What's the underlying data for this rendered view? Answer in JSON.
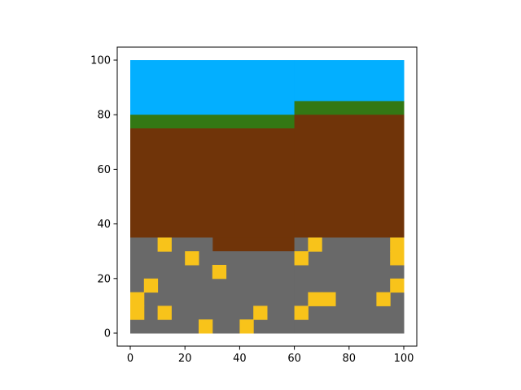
{
  "chart_data": {
    "type": "heatmap",
    "title": "",
    "xlabel": "",
    "ylabel": "",
    "xlim": [
      0,
      100
    ],
    "ylim": [
      0,
      100
    ],
    "grid": false,
    "x_ticks": [
      "0",
      "20",
      "40",
      "60",
      "80",
      "100"
    ],
    "y_ticks": [
      "0",
      "20",
      "40",
      "60",
      "80",
      "100"
    ],
    "x_tick_values": [
      0,
      20,
      40,
      60,
      80,
      100
    ],
    "y_tick_values": [
      0,
      20,
      40,
      60,
      80,
      100
    ],
    "cell_size": 5,
    "colors": {
      "sky": "#03AFFF",
      "grass": "#337814",
      "dirt": "#703409",
      "stone": "#696969",
      "gold": "#F8C31A"
    },
    "regions": [
      {
        "material": "sky",
        "x0": 0,
        "x1": 60,
        "y0": 80,
        "y1": 100
      },
      {
        "material": "sky",
        "x0": 60,
        "x1": 100,
        "y0": 85,
        "y1": 100
      },
      {
        "material": "grass",
        "x0": 0,
        "x1": 60,
        "y0": 75,
        "y1": 80
      },
      {
        "material": "grass",
        "x0": 60,
        "x1": 100,
        "y0": 80,
        "y1": 85
      },
      {
        "material": "dirt",
        "x0": 0,
        "x1": 60,
        "y0": 35,
        "y1": 75
      },
      {
        "material": "dirt",
        "x0": 60,
        "x1": 100,
        "y0": 35,
        "y1": 80
      },
      {
        "material": "dirt",
        "x0": 30,
        "x1": 60,
        "y0": 30,
        "y1": 35
      },
      {
        "material": "stone",
        "x0": 0,
        "x1": 30,
        "y0": 0,
        "y1": 35
      },
      {
        "material": "stone",
        "x0": 30,
        "x1": 60,
        "y0": 0,
        "y1": 30
      },
      {
        "material": "stone",
        "x0": 60,
        "x1": 100,
        "y0": 0,
        "y1": 35
      }
    ],
    "gold_cells": [
      [
        10,
        30
      ],
      [
        20,
        25
      ],
      [
        30,
        20
      ],
      [
        5,
        15
      ],
      [
        0,
        10
      ],
      [
        0,
        5
      ],
      [
        10,
        5
      ],
      [
        25,
        0
      ],
      [
        40,
        0
      ],
      [
        45,
        5
      ],
      [
        60,
        5
      ],
      [
        60,
        25
      ],
      [
        65,
        30
      ],
      [
        65,
        10
      ],
      [
        70,
        10
      ],
      [
        90,
        10
      ],
      [
        95,
        15
      ],
      [
        95,
        25
      ],
      [
        95,
        30
      ]
    ]
  }
}
